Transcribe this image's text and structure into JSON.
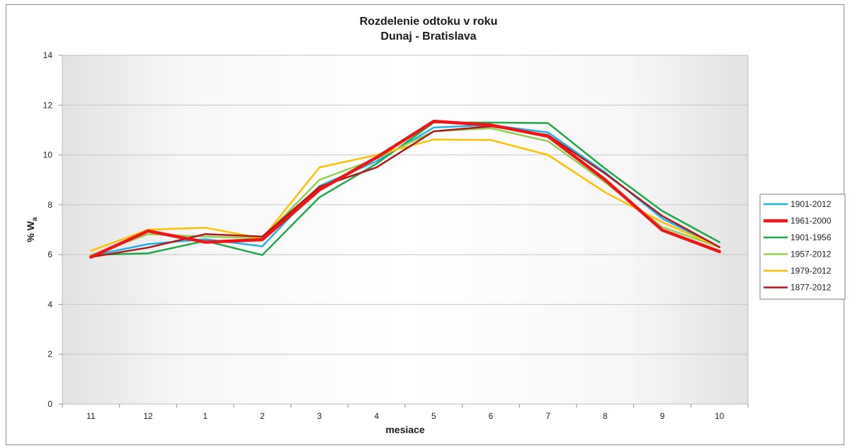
{
  "chart_data": {
    "type": "line",
    "title": "Rozdelenie odtoku v roku",
    "subtitle": "Dunaj - Bratislava",
    "xlabel": "mesiace",
    "ylabel_main": "% W",
    "ylabel_sub": "a",
    "categories": [
      "11",
      "12",
      "1",
      "2",
      "3",
      "4",
      "5",
      "6",
      "7",
      "8",
      "9",
      "10"
    ],
    "ylim": [
      0,
      14
    ],
    "yticks": [
      0,
      2,
      4,
      6,
      8,
      10,
      12,
      14
    ],
    "grid": true,
    "legend_position": "right",
    "series": [
      {
        "name": "1901-2012",
        "color": "#1fb2e8",
        "width": 2.5,
        "values": [
          5.95,
          6.42,
          6.62,
          6.33,
          8.75,
          9.75,
          11.1,
          11.2,
          10.9,
          9.3,
          7.45,
          6.3
        ]
      },
      {
        "name": "1961-2000",
        "color": "#f01414",
        "width": 4.5,
        "values": [
          5.9,
          6.95,
          6.5,
          6.6,
          8.6,
          9.9,
          11.35,
          11.2,
          10.75,
          9.0,
          6.98,
          6.12
        ]
      },
      {
        "name": "1901-1956",
        "color": "#1ea84a",
        "width": 2.5,
        "values": [
          5.98,
          6.05,
          6.55,
          5.98,
          8.3,
          9.65,
          11.3,
          11.3,
          11.28,
          9.45,
          7.75,
          6.5
        ]
      },
      {
        "name": "1957-2012",
        "color": "#92d050",
        "width": 2.5,
        "values": [
          5.97,
          6.82,
          6.72,
          6.65,
          9.0,
          9.85,
          10.95,
          11.07,
          10.55,
          8.9,
          7.1,
          6.3
        ]
      },
      {
        "name": "1979-2012",
        "color": "#ffc000",
        "width": 2.5,
        "values": [
          6.15,
          7.0,
          7.08,
          6.65,
          9.5,
          10.0,
          10.62,
          10.6,
          10.0,
          8.5,
          7.3,
          6.3
        ]
      },
      {
        "name": "1877-2012",
        "color": "#b01818",
        "width": 2.5,
        "values": [
          5.9,
          6.28,
          6.82,
          6.72,
          8.72,
          9.5,
          10.95,
          11.15,
          10.8,
          9.25,
          7.55,
          6.3
        ]
      }
    ]
  }
}
